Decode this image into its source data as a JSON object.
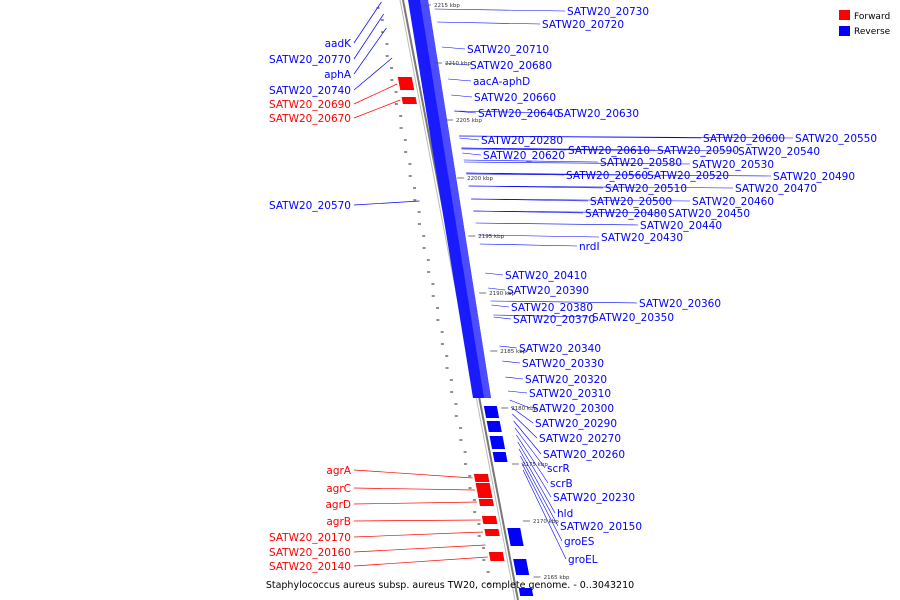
{
  "caption": "Staphylococcus aureus subsp. aureus TW20, complete genome. - 0..3043210",
  "colors": {
    "forward": "#ff0000",
    "reverse": "#0000ff",
    "backbone": "#888888"
  },
  "legend": [
    {
      "label": "Forward",
      "color": "#ff0000"
    },
    {
      "label": "Reverse",
      "color": "#0000ff"
    }
  ],
  "ticks": [
    "2215 kbp",
    "2210 kbp",
    "2205 kbp",
    "2200 kbp",
    "2195 kbp",
    "2190 kbp",
    "2185 kbp",
    "2180 kbp",
    "2175 kbp",
    "2170 kbp",
    "2165 kbp"
  ],
  "left_labels": [
    {
      "text": "aadK",
      "strand": "reverse"
    },
    {
      "text": "SATW20_20770",
      "strand": "reverse"
    },
    {
      "text": "aphA",
      "strand": "reverse"
    },
    {
      "text": "SATW20_20740",
      "strand": "reverse"
    },
    {
      "text": "SATW20_20690",
      "strand": "forward"
    },
    {
      "text": "SATW20_20670",
      "strand": "forward"
    },
    {
      "text": "SATW20_20570",
      "strand": "reverse"
    },
    {
      "text": "agrA",
      "strand": "forward"
    },
    {
      "text": "agrC",
      "strand": "forward"
    },
    {
      "text": "agrD",
      "strand": "forward"
    },
    {
      "text": "agrB",
      "strand": "forward"
    },
    {
      "text": "SATW20_20170",
      "strand": "forward"
    },
    {
      "text": "SATW20_20160",
      "strand": "forward"
    },
    {
      "text": "SATW20_20140",
      "strand": "forward"
    }
  ],
  "right_labels": [
    "SATW20_20730",
    "SATW20_20720",
    "SATW20_20710",
    "SATW20_20680",
    "aacA-aphD",
    "SATW20_20660",
    "SATW20_20640",
    "SATW20_20630",
    "SATW20_20280",
    "SATW20_20600",
    "SATW20_20550",
    "SATW20_20610",
    "SATW20_20590",
    "SATW20_20540",
    "SATW20_20620",
    "SATW20_20580",
    "SATW20_20530",
    "SATW20_20560",
    "SATW20_20520",
    "SATW20_20490",
    "SATW20_20510",
    "SATW20_20470",
    "SATW20_20500",
    "SATW20_20460",
    "SATW20_20480",
    "SATW20_20450",
    "SATW20_20440",
    "SATW20_20430",
    "nrdI",
    "SATW20_20410",
    "SATW20_20390",
    "SATW20_20380",
    "SATW20_20360",
    "SATW20_20370",
    "SATW20_20350",
    "SATW20_20340",
    "SATW20_20330",
    "SATW20_20320",
    "SATW20_20310",
    "SATW20_20300",
    "SATW20_20290",
    "SATW20_20270",
    "SATW20_20260",
    "scrR",
    "scrB",
    "SATW20_20230",
    "hld",
    "SATW20_20150",
    "groES",
    "groEL"
  ]
}
